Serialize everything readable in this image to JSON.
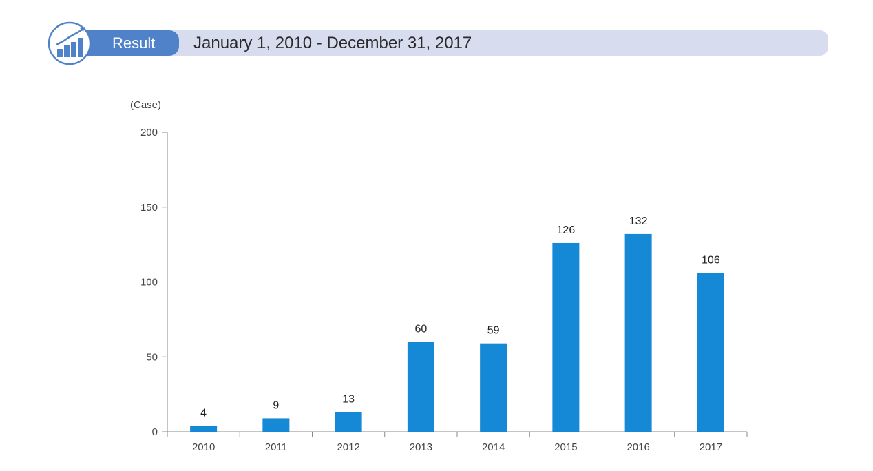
{
  "header": {
    "badge_label": "Result",
    "period": "January 1, 2010 - December 31, 2017",
    "logo_icon": "rising-bar-chart-icon",
    "accent_color": "#4f82c8",
    "bar_color": "#d7dcef"
  },
  "chart_data": {
    "type": "bar",
    "title": "",
    "ylabel": "(Case)",
    "xlabel": "",
    "categories": [
      "2010",
      "2011",
      "2012",
      "2013",
      "2014",
      "2015",
      "2016",
      "2017"
    ],
    "values": [
      4,
      9,
      13,
      60,
      59,
      126,
      132,
      106
    ],
    "ylim": [
      0,
      200
    ],
    "yticks": [
      0,
      50,
      100,
      150,
      200
    ],
    "grid": false,
    "legend": "none",
    "bar_color": "#1689d6",
    "data_labels": true
  }
}
